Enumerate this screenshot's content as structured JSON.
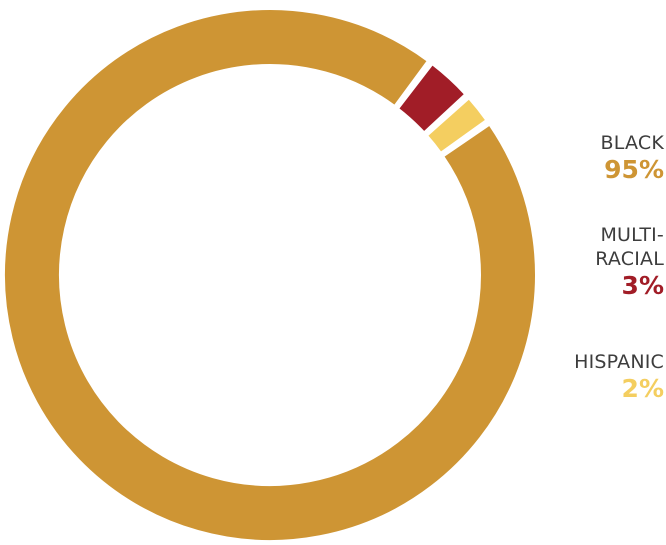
{
  "chart_data": {
    "type": "pie",
    "donut": true,
    "start_angle_deg": 55,
    "slices": [
      {
        "label": "BLACK",
        "value": 95,
        "value_label": "95%",
        "color": "#CE9534"
      },
      {
        "label": "MULTI-RACIAL",
        "value": 3,
        "value_label": "3%",
        "color": "#A11D27"
      },
      {
        "label": "HISPANIC",
        "value": 2,
        "value_label": "2%",
        "color": "#F4CE60"
      }
    ],
    "legend_placement": "right"
  },
  "legend": {
    "black": {
      "label": "BLACK",
      "value": "95%",
      "color": "#CE9534"
    },
    "multi": {
      "label_line1": "MULTI-",
      "label_line2": "RACIAL",
      "value": "3%",
      "color": "#A11D27"
    },
    "hispanic": {
      "label": "HISPANIC",
      "value": "2%",
      "color": "#F4CE60"
    }
  }
}
